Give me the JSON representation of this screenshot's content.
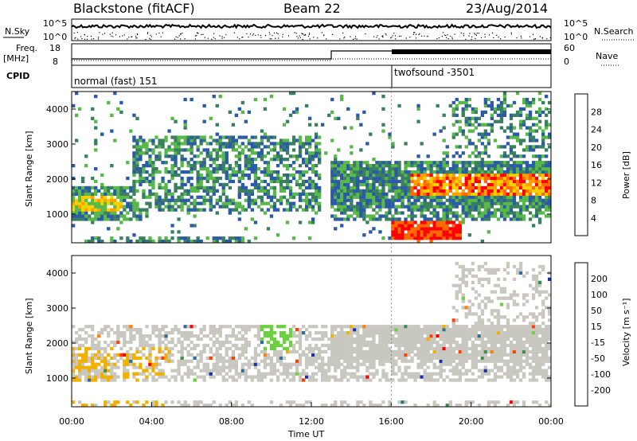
{
  "header": {
    "radar": "Blackstone (fitACF)",
    "beam": "Beam 22",
    "date": "23/Aug/2014"
  },
  "summary_panels": {
    "nsky_label": "N.Sky",
    "nsky_ticks": [
      "10^5",
      "10^0"
    ],
    "nsearch_label": "N.Search",
    "nsearch_ticks": [
      "10^5",
      "10^0"
    ],
    "freq_label_top": "Freq.",
    "freq_label_unit": "[MHz]",
    "freq_ticks": [
      "18",
      "8"
    ],
    "nave_label": "Nave",
    "nave_ticks": [
      "60",
      "0"
    ],
    "cpid_label": "CPID",
    "cpid_modes": [
      {
        "text": "normal (fast) 151",
        "start_hour": 0
      },
      {
        "text": "twofsound -3501",
        "start_hour": 16
      }
    ]
  },
  "chart_data": [
    {
      "type": "heatmap",
      "title": "",
      "xlabel": "",
      "ylabel": "Slant Range [km]",
      "xlim": [
        0,
        24
      ],
      "ylim": [
        180,
        4500
      ],
      "y_ticks": [
        1000,
        2000,
        3000,
        4000
      ],
      "colorbar": {
        "label": "Power [dB]",
        "ticks": [
          28,
          24,
          20,
          16,
          12,
          8,
          4
        ],
        "colors": [
          "#ff0000",
          "#ff6a00",
          "#ffa000",
          "#f2d200",
          "#58b84a",
          "#3a7f5f",
          "#2a5aa8",
          "#0000ff"
        ]
      },
      "description_regions": [
        {
          "x": [
            0,
            3
          ],
          "y": [
            900,
            1700
          ],
          "level": "high"
        },
        {
          "x": [
            13,
            24
          ],
          "y": [
            1300,
            2400
          ],
          "level": "high"
        },
        {
          "x": [
            16,
            19
          ],
          "y": [
            250,
            800
          ],
          "level": "highest"
        }
      ]
    },
    {
      "type": "heatmap",
      "title": "",
      "xlabel": "Time UT",
      "ylabel": "Slant Range [km]",
      "xlim": [
        0,
        24
      ],
      "ylim": [
        180,
        4500
      ],
      "x_ticks": [
        "00:00",
        "04:00",
        "08:00",
        "12:00",
        "16:00",
        "20:00",
        "00:00"
      ],
      "y_ticks": [
        1000,
        2000,
        3000,
        4000
      ],
      "colorbar": {
        "label": "Velocity [m s⁻¹]",
        "ticks": [
          "200",
          "100",
          "50",
          "15",
          "-15",
          "-50",
          "-100",
          "-200"
        ],
        "colors": [
          "#1a2fb0",
          "#2e6f9a",
          "#3a8f4a",
          "#6cd040",
          "#c8c8c0",
          "#f0b000",
          "#ff8000",
          "#ff4000",
          "#ff0000"
        ]
      }
    }
  ]
}
